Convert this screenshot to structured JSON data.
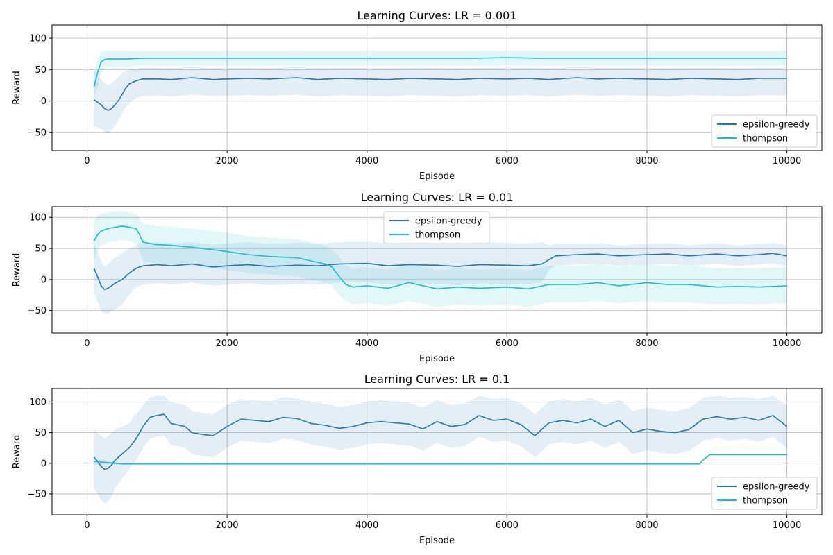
{
  "chart_data": [
    {
      "type": "line",
      "title": "Learning Curves: LR = 0.001",
      "xlabel": "Episode",
      "ylabel": "Reward",
      "xlim": [
        -500,
        10500
      ],
      "ylim": [
        -79,
        121
      ],
      "xticks": [
        0,
        2000,
        4000,
        6000,
        8000,
        10000
      ],
      "yticks": [
        -50,
        0,
        50,
        100
      ],
      "grid": true,
      "legend_position": "lower-right",
      "series": [
        {
          "name": "epsilon-greedy",
          "color": "#1f77b4",
          "band_color": "#1f77b4",
          "x": [
            100,
            150,
            200,
            250,
            300,
            350,
            400,
            450,
            500,
            550,
            600,
            700,
            800,
            1000,
            1200,
            1500,
            1800,
            2000,
            2300,
            2600,
            3000,
            3300,
            3600,
            4000,
            4300,
            4600,
            5000,
            5300,
            5600,
            6000,
            6300,
            6600,
            7000,
            7300,
            7600,
            8000,
            8300,
            8600,
            9000,
            9300,
            9600,
            10000
          ],
          "y": [
            2,
            -2,
            -6,
            -12,
            -15,
            -12,
            -6,
            1,
            10,
            20,
            27,
            32,
            35,
            35,
            34,
            37,
            34,
            35,
            36,
            35,
            37,
            34,
            36,
            35,
            34,
            36,
            35,
            34,
            36,
            35,
            36,
            34,
            37,
            35,
            36,
            35,
            34,
            36,
            35,
            34,
            36,
            36
          ],
          "lower": [
            -40,
            -42,
            -45,
            -50,
            -52,
            -48,
            -40,
            -30,
            -20,
            -10,
            -5,
            5,
            8,
            8,
            7,
            10,
            8,
            8,
            9,
            8,
            10,
            7,
            9,
            8,
            7,
            9,
            8,
            7,
            9,
            8,
            9,
            7,
            10,
            8,
            9,
            8,
            7,
            9,
            8,
            7,
            9,
            9
          ],
          "upper": [
            50,
            40,
            35,
            28,
            25,
            28,
            33,
            38,
            45,
            48,
            50,
            52,
            53,
            53,
            52,
            54,
            52,
            53,
            53,
            52,
            54,
            52,
            53,
            53,
            52,
            53,
            53,
            52,
            53,
            53,
            53,
            52,
            54,
            53,
            53,
            53,
            52,
            53,
            53,
            52,
            53,
            53
          ]
        },
        {
          "name": "thompson",
          "color": "#17becf",
          "band_color": "#17becf",
          "x": [
            100,
            150,
            200,
            250,
            300,
            400,
            600,
            800,
            1000,
            1500,
            2000,
            2500,
            3000,
            3500,
            4000,
            4500,
            5000,
            5500,
            6000,
            6500,
            7000,
            7500,
            8000,
            8500,
            9000,
            9500,
            10000
          ],
          "y": [
            22,
            45,
            62,
            66,
            67,
            67,
            67,
            68,
            68,
            68,
            68,
            68,
            68,
            68,
            68,
            68,
            68,
            68,
            69,
            68,
            68,
            68,
            68,
            68,
            68,
            68,
            68
          ],
          "lower": [
            5,
            20,
            45,
            52,
            54,
            55,
            55,
            56,
            56,
            56,
            56,
            56,
            56,
            56,
            56,
            56,
            56,
            56,
            56,
            56,
            56,
            56,
            56,
            56,
            56,
            56,
            56
          ],
          "upper": [
            45,
            65,
            78,
            80,
            80,
            80,
            80,
            80,
            80,
            80,
            80,
            80,
            80,
            80,
            80,
            80,
            80,
            80,
            80,
            80,
            80,
            80,
            80,
            80,
            80,
            80,
            80
          ]
        }
      ]
    },
    {
      "type": "line",
      "title": "Learning Curves: LR = 0.01",
      "xlabel": "Episode",
      "ylabel": "Reward",
      "xlim": [
        -500,
        10500
      ],
      "ylim": [
        -86,
        117
      ],
      "xticks": [
        0,
        2000,
        4000,
        6000,
        8000,
        10000
      ],
      "yticks": [
        -50,
        0,
        50,
        100
      ],
      "grid": true,
      "legend_position": "upper-center",
      "series": [
        {
          "name": "epsilon-greedy",
          "color": "#1f77b4",
          "band_color": "#1f77b4",
          "x": [
            100,
            150,
            200,
            250,
            300,
            400,
            500,
            600,
            700,
            800,
            1000,
            1200,
            1500,
            1800,
            2000,
            2300,
            2600,
            3000,
            3300,
            3600,
            4000,
            4300,
            4600,
            5000,
            5300,
            5600,
            6000,
            6300,
            6500,
            6600,
            6700,
            7000,
            7300,
            7600,
            8000,
            8300,
            8600,
            9000,
            9300,
            9600,
            9800,
            10000
          ],
          "y": [
            18,
            5,
            -10,
            -16,
            -14,
            -6,
            0,
            10,
            18,
            22,
            24,
            22,
            25,
            20,
            22,
            24,
            21,
            23,
            22,
            25,
            26,
            22,
            24,
            23,
            21,
            24,
            23,
            22,
            25,
            32,
            38,
            40,
            41,
            38,
            40,
            41,
            38,
            41,
            38,
            40,
            42,
            38
          ],
          "lower": [
            -20,
            -35,
            -50,
            -55,
            -55,
            -48,
            -40,
            -25,
            -12,
            -8,
            -6,
            -8,
            -5,
            -10,
            -8,
            -6,
            -9,
            -7,
            -8,
            -5,
            -4,
            -8,
            -6,
            -7,
            -9,
            -6,
            -7,
            -8,
            -5,
            15,
            22,
            24,
            25,
            22,
            24,
            25,
            22,
            25,
            22,
            24,
            26,
            22
          ],
          "upper": [
            60,
            45,
            30,
            20,
            25,
            35,
            42,
            50,
            55,
            58,
            60,
            58,
            60,
            56,
            58,
            60,
            57,
            59,
            58,
            60,
            61,
            58,
            60,
            59,
            57,
            60,
            59,
            58,
            60,
            55,
            57,
            57,
            58,
            55,
            57,
            58,
            55,
            58,
            55,
            57,
            59,
            55
          ]
        },
        {
          "name": "thompson",
          "color": "#17becf",
          "band_color": "#17becf",
          "x": [
            100,
            150,
            200,
            300,
            400,
            500,
            600,
            700,
            750,
            800,
            1000,
            1200,
            1500,
            1800,
            2000,
            2300,
            2600,
            3000,
            3200,
            3400,
            3500,
            3600,
            3700,
            3800,
            4000,
            4300,
            4600,
            5000,
            5300,
            5600,
            6000,
            6300,
            6600,
            7000,
            7300,
            7600,
            8000,
            8300,
            8600,
            9000,
            9300,
            9600,
            10000
          ],
          "y": [
            62,
            72,
            78,
            82,
            84,
            86,
            84,
            82,
            72,
            60,
            56,
            55,
            52,
            48,
            45,
            40,
            37,
            35,
            30,
            25,
            20,
            5,
            -8,
            -12,
            -10,
            -14,
            -5,
            -15,
            -12,
            -14,
            -12,
            -15,
            -8,
            -8,
            -5,
            -10,
            -5,
            -8,
            -8,
            -12,
            -11,
            -12,
            -10
          ],
          "lower": [
            30,
            45,
            55,
            60,
            62,
            64,
            62,
            58,
            45,
            30,
            25,
            24,
            22,
            18,
            15,
            10,
            8,
            5,
            0,
            -5,
            -10,
            -25,
            -35,
            -40,
            -38,
            -42,
            -35,
            -44,
            -40,
            -42,
            -40,
            -44,
            -37,
            -37,
            -35,
            -38,
            -35,
            -37,
            -37,
            -40,
            -39,
            -40,
            -38
          ],
          "upper": [
            95,
            102,
            106,
            108,
            110,
            110,
            108,
            106,
            98,
            90,
            86,
            85,
            82,
            78,
            75,
            70,
            67,
            65,
            60,
            55,
            50,
            35,
            22,
            18,
            20,
            16,
            25,
            15,
            18,
            16,
            18,
            15,
            22,
            22,
            25,
            20,
            25,
            22,
            22,
            18,
            19,
            18,
            20
          ]
        }
      ]
    },
    {
      "type": "line",
      "title": "Learning Curves: LR = 0.1",
      "xlabel": "Episode",
      "ylabel": "Reward",
      "xlim": [
        -500,
        10500
      ],
      "ylim": [
        -84,
        122
      ],
      "xticks": [
        0,
        2000,
        4000,
        6000,
        8000,
        10000
      ],
      "yticks": [
        -50,
        0,
        50,
        100
      ],
      "grid": true,
      "legend_position": "lower-right",
      "series": [
        {
          "name": "epsilon-greedy",
          "color": "#1f77b4",
          "band_color": "#1f77b4",
          "x": [
            100,
            150,
            200,
            250,
            300,
            350,
            400,
            500,
            600,
            700,
            800,
            900,
            1000,
            1100,
            1200,
            1400,
            1500,
            1600,
            1800,
            2000,
            2200,
            2400,
            2600,
            2800,
            3000,
            3200,
            3400,
            3600,
            3800,
            4000,
            4200,
            4400,
            4600,
            4800,
            5000,
            5200,
            5400,
            5600,
            5800,
            6000,
            6200,
            6400,
            6600,
            6800,
            7000,
            7200,
            7400,
            7600,
            7800,
            8000,
            8200,
            8400,
            8600,
            8800,
            9000,
            9200,
            9400,
            9600,
            9800,
            10000
          ],
          "y": [
            10,
            3,
            -5,
            -10,
            -8,
            -3,
            5,
            15,
            25,
            40,
            60,
            75,
            78,
            80,
            65,
            60,
            50,
            48,
            45,
            60,
            72,
            70,
            68,
            75,
            73,
            65,
            62,
            57,
            60,
            66,
            68,
            66,
            64,
            56,
            68,
            60,
            63,
            78,
            70,
            72,
            63,
            45,
            66,
            70,
            66,
            72,
            60,
            70,
            50,
            56,
            52,
            50,
            55,
            72,
            76,
            72,
            75,
            70,
            78,
            60
          ],
          "lower": [
            -40,
            -50,
            -60,
            -65,
            -62,
            -55,
            -40,
            -25,
            -10,
            5,
            25,
            40,
            43,
            45,
            30,
            25,
            15,
            13,
            10,
            25,
            37,
            35,
            33,
            40,
            38,
            30,
            27,
            22,
            25,
            31,
            33,
            31,
            29,
            21,
            33,
            25,
            28,
            43,
            35,
            37,
            28,
            10,
            31,
            35,
            31,
            37,
            25,
            35,
            15,
            21,
            17,
            15,
            20,
            37,
            41,
            37,
            40,
            35,
            43,
            25
          ],
          "upper": [
            55,
            50,
            45,
            40,
            45,
            50,
            55,
            60,
            65,
            80,
            95,
            108,
            110,
            110,
            100,
            95,
            85,
            83,
            80,
            95,
            105,
            103,
            101,
            108,
            106,
            100,
            97,
            92,
            95,
            101,
            103,
            101,
            99,
            91,
            103,
            95,
            98,
            110,
            105,
            107,
            98,
            80,
            101,
            105,
            101,
            107,
            95,
            105,
            85,
            91,
            87,
            85,
            90,
            107,
            110,
            107,
            108,
            105,
            110,
            95
          ]
        },
        {
          "name": "thompson",
          "color": "#17becf",
          "band_color": "#17becf",
          "x": [
            100,
            200,
            300,
            500,
            1000,
            2000,
            4000,
            6000,
            8000,
            8750,
            8800,
            8900,
            9000,
            9500,
            10000
          ],
          "y": [
            3,
            2,
            1,
            -1,
            -1,
            -1,
            -1,
            -1,
            -1,
            -1,
            5,
            14,
            14,
            14,
            14
          ],
          "lower": [
            -2,
            -2,
            -2,
            -2,
            -2,
            -2,
            -2,
            -2,
            -2,
            -2,
            3,
            13,
            13,
            13,
            13
          ],
          "upper": [
            8,
            6,
            4,
            0,
            0,
            0,
            0,
            0,
            0,
            0,
            7,
            15,
            15,
            15,
            15
          ]
        }
      ]
    }
  ]
}
